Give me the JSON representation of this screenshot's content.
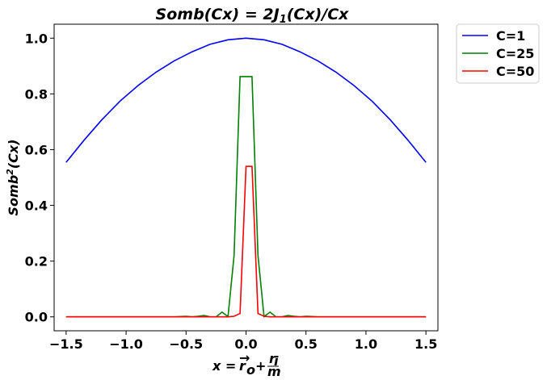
{
  "chart_data": {
    "type": "line",
    "title": "Somb(Cx) = 2J₁(Cx)/Cx",
    "xlabel": "x = r⃗ₒ + r⃗ᵢ/m",
    "ylabel": "Somb²(Cx)",
    "xlim": [
      -1.6,
      1.6
    ],
    "ylim": [
      -0.05,
      1.05
    ],
    "x_ticks": [
      "−1.5",
      "−1.0",
      "−0.5",
      "0.0",
      "0.5",
      "1.0",
      "1.5"
    ],
    "x_tick_values": [
      -1.5,
      -1.0,
      -0.5,
      0.0,
      0.5,
      1.0,
      1.5
    ],
    "y_ticks": [
      "0.0",
      "0.2",
      "0.4",
      "0.6",
      "0.8",
      "1.0"
    ],
    "y_tick_values": [
      0.0,
      0.2,
      0.4,
      0.6,
      0.8,
      1.0
    ],
    "grid": false,
    "legend_position": "outside-top-right",
    "series": [
      {
        "name": "C=1",
        "color": "#0000ff",
        "x": [
          -1.5,
          -1.35,
          -1.2,
          -1.05,
          -0.9,
          -0.75,
          -0.6,
          -0.45,
          -0.3,
          -0.15,
          0.0,
          0.15,
          0.3,
          0.45,
          0.6,
          0.75,
          0.9,
          1.05,
          1.2,
          1.35,
          1.5
        ],
        "y": [
          0.554,
          0.634,
          0.708,
          0.774,
          0.83,
          0.878,
          0.918,
          0.951,
          0.978,
          0.994,
          1.0,
          0.994,
          0.978,
          0.951,
          0.918,
          0.878,
          0.83,
          0.774,
          0.708,
          0.634,
          0.554
        ]
      },
      {
        "name": "C=25",
        "color": "#008000",
        "x": [
          -1.5,
          -0.6,
          -0.5,
          -0.45,
          -0.4,
          -0.35,
          -0.3,
          -0.25,
          -0.2,
          -0.15,
          -0.1,
          -0.05,
          0.0,
          0.05,
          0.1,
          0.15,
          0.2,
          0.25,
          0.3,
          0.35,
          0.4,
          0.45,
          0.5,
          0.6,
          1.5
        ],
        "y": [
          0.0,
          0.0,
          0.002,
          0.0,
          0.002,
          0.005,
          0.0,
          0.0,
          0.017,
          0.001,
          0.22,
          0.862,
          0.862,
          0.862,
          0.22,
          0.001,
          0.017,
          0.0,
          0.0,
          0.005,
          0.002,
          0.0,
          0.002,
          0.0,
          0.0
        ]
      },
      {
        "name": "C=50",
        "color": "#ff0000",
        "x": [
          -1.5,
          -0.2,
          -0.15,
          -0.1,
          -0.05,
          0.0,
          0.05,
          0.1,
          0.15,
          0.2,
          1.5
        ],
        "y": [
          0.0,
          0.0,
          0.0,
          0.002,
          0.012,
          0.54,
          0.54,
          0.012,
          0.002,
          0.0,
          0.0
        ]
      }
    ]
  }
}
